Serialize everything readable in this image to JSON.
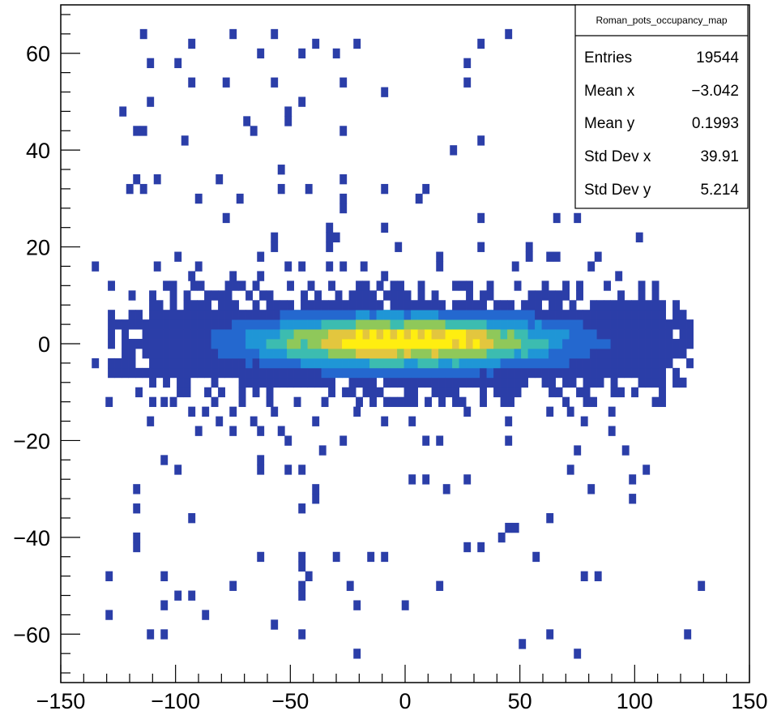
{
  "chart_data": {
    "type": "heatmap",
    "title": "",
    "xlabel": "",
    "ylabel": "",
    "xlim": [
      -150,
      150
    ],
    "ylim": [
      -70,
      70
    ],
    "bin_width_x": 3,
    "bin_width_y": 2,
    "x_ticks": [
      -150,
      -100,
      -50,
      0,
      50,
      100,
      150
    ],
    "x_tick_labels": [
      "−150",
      "−100",
      "−50",
      "0",
      "50",
      "100",
      "150"
    ],
    "y_ticks": [
      -60,
      -40,
      -20,
      0,
      20,
      40,
      60
    ],
    "y_tick_labels": [
      "−60",
      "−40",
      "−20",
      "0",
      "20",
      "40",
      "60"
    ],
    "colormap": [
      "#2b3ea8",
      "#2468cf",
      "#1f96d6",
      "#3cbcb0",
      "#8fc85a",
      "#e3c63e",
      "#ffee10"
    ],
    "core_distribution": {
      "description_units": "data units",
      "x_sigma": 40,
      "y_sigma": 3.2,
      "x_extent": [
        -128,
        126
      ],
      "y_extent": [
        -12,
        12
      ],
      "peak_center": [
        0,
        0.5
      ]
    },
    "sparse_points": [
      [
        -114,
        64
      ],
      [
        -74,
        64
      ],
      [
        -56,
        64
      ],
      [
        -20,
        62
      ],
      [
        -38,
        62
      ],
      [
        -94,
        61
      ],
      [
        34,
        61
      ],
      [
        46,
        64
      ],
      [
        -112,
        58
      ],
      [
        -98,
        58
      ],
      [
        -64,
        60
      ],
      [
        -46,
        60
      ],
      [
        -30,
        60
      ],
      [
        26,
        57
      ],
      [
        -94,
        54
      ],
      [
        -94,
        53
      ],
      [
        -78,
        53
      ],
      [
        -58,
        53
      ],
      [
        -26,
        53
      ],
      [
        26,
        53
      ],
      [
        -112,
        50
      ],
      [
        -44,
        50
      ],
      [
        -8,
        51
      ],
      [
        -122,
        47
      ],
      [
        -70,
        46
      ],
      [
        -50,
        47
      ],
      [
        -50,
        46
      ],
      [
        -114,
        44
      ],
      [
        -66,
        44
      ],
      [
        -118,
        43
      ],
      [
        -28,
        43
      ],
      [
        -96,
        42
      ],
      [
        34,
        42
      ],
      [
        22,
        39
      ],
      [
        -54,
        36
      ],
      [
        -116,
        33
      ],
      [
        -108,
        33
      ],
      [
        -82,
        33
      ],
      [
        -28,
        33
      ],
      [
        -120,
        32
      ],
      [
        -114,
        31
      ],
      [
        -54,
        32
      ],
      [
        -42,
        32
      ],
      [
        -8,
        32
      ],
      [
        10,
        32
      ],
      [
        -26,
        29
      ],
      [
        -90,
        29
      ],
      [
        -72,
        29
      ],
      [
        6,
        30
      ],
      [
        -26,
        28
      ],
      [
        -78,
        26
      ],
      [
        34,
        25
      ],
      [
        66,
        25
      ],
      [
        74,
        25
      ],
      [
        -34,
        23
      ],
      [
        -30,
        22
      ],
      [
        -58,
        22
      ],
      [
        -58,
        19
      ],
      [
        -34,
        21
      ],
      [
        -10,
        23
      ],
      [
        -32,
        19
      ],
      [
        -100,
        17
      ],
      [
        -108,
        16
      ],
      [
        -134,
        15
      ],
      [
        -90,
        15
      ],
      [
        -62,
        17
      ],
      [
        -52,
        16
      ],
      [
        -46,
        16
      ],
      [
        -34,
        16
      ],
      [
        -28,
        15
      ],
      [
        -18,
        16
      ],
      [
        -8,
        14
      ],
      [
        14,
        15
      ],
      [
        48,
        15
      ],
      [
        -94,
        13
      ],
      [
        -76,
        13
      ],
      [
        -62,
        13
      ],
      [
        16,
        17
      ],
      [
        54,
        17
      ],
      [
        54,
        20
      ],
      [
        66,
        17
      ],
      [
        84,
        17
      ],
      [
        92,
        13
      ],
      [
        34,
        20
      ],
      [
        14,
        15
      ],
      [
        62,
        17
      ],
      [
        102,
        22
      ],
      [
        -2,
        20
      ],
      [
        82,
        15
      ],
      [
        -134,
        -4
      ],
      [
        -130,
        -13
      ],
      [
        -112,
        -16
      ],
      [
        -104,
        -13
      ],
      [
        -94,
        -15
      ],
      [
        -86,
        -15
      ],
      [
        -82,
        -16
      ],
      [
        -74,
        -14
      ],
      [
        -66,
        -16
      ],
      [
        -58,
        -14
      ],
      [
        -54,
        -19
      ],
      [
        -50,
        -20
      ],
      [
        -38,
        -16
      ],
      [
        -22,
        -15
      ],
      [
        -8,
        -17
      ],
      [
        4,
        -16
      ],
      [
        26,
        -15
      ],
      [
        46,
        -16
      ],
      [
        62,
        -14
      ],
      [
        72,
        -14
      ],
      [
        78,
        -16
      ],
      [
        90,
        -15
      ],
      [
        -90,
        -19
      ],
      [
        -74,
        -18
      ],
      [
        -62,
        -18
      ],
      [
        -28,
        -20
      ],
      [
        8,
        -20
      ],
      [
        14,
        -20
      ],
      [
        46,
        -20
      ],
      [
        90,
        -19
      ],
      [
        96,
        -22
      ],
      [
        -106,
        -24
      ],
      [
        -62,
        -25
      ],
      [
        -62,
        -26
      ],
      [
        -50,
        -27
      ],
      [
        -46,
        -27
      ],
      [
        -36,
        -23
      ],
      [
        -100,
        -27
      ],
      [
        4,
        -29
      ],
      [
        10,
        -29
      ],
      [
        18,
        -30
      ],
      [
        26,
        -29
      ],
      [
        72,
        -26
      ],
      [
        76,
        -23
      ],
      [
        106,
        -26
      ],
      [
        -116,
        -30
      ],
      [
        -38,
        -31
      ],
      [
        -38,
        -32
      ],
      [
        -46,
        -34
      ],
      [
        100,
        -29
      ],
      [
        80,
        -31
      ],
      [
        100,
        -33
      ],
      [
        -118,
        -34
      ],
      [
        -94,
        -37
      ],
      [
        48,
        -38
      ],
      [
        -118,
        -41
      ],
      [
        -116,
        -43
      ],
      [
        26,
        -43
      ],
      [
        32,
        -43
      ],
      [
        42,
        -40
      ],
      [
        46,
        -39
      ],
      [
        62,
        -37
      ],
      [
        -106,
        -48
      ],
      [
        -64,
        -45
      ],
      [
        -46,
        -45
      ],
      [
        -46,
        -47
      ],
      [
        -30,
        -45
      ],
      [
        -14,
        -45
      ],
      [
        -8,
        -44
      ],
      [
        56,
        -45
      ],
      [
        -128,
        -48
      ],
      [
        -74,
        -50
      ],
      [
        -106,
        -48
      ],
      [
        78,
        -48
      ],
      [
        84,
        -48
      ],
      [
        -42,
        -49
      ],
      [
        -44,
        -51
      ],
      [
        -24,
        -51
      ],
      [
        -46,
        -52
      ],
      [
        -100,
        -53
      ],
      [
        -94,
        -53
      ],
      [
        -104,
        -54
      ],
      [
        -22,
        -55
      ],
      [
        0,
        -54
      ],
      [
        14,
        -51
      ],
      [
        128,
        -51
      ],
      [
        -128,
        -57
      ],
      [
        -86,
        -57
      ],
      [
        -56,
        -58
      ],
      [
        -112,
        -60
      ],
      [
        -106,
        -61
      ],
      [
        -44,
        -61
      ],
      [
        62,
        -61
      ],
      [
        124,
        -61
      ],
      [
        -20,
        -64
      ],
      [
        50,
        -62
      ],
      [
        74,
        -64
      ]
    ]
  },
  "stats_box": {
    "title": "Roman_pots_occupancy_map",
    "rows": [
      {
        "label": "Entries",
        "value": "19544"
      },
      {
        "label": "Mean x",
        "value": "−3.042"
      },
      {
        "label": "Mean y",
        "value": "0.1993"
      },
      {
        "label": "Std Dev x",
        "value": "39.91"
      },
      {
        "label": "Std Dev y",
        "value": "5.214"
      }
    ]
  }
}
